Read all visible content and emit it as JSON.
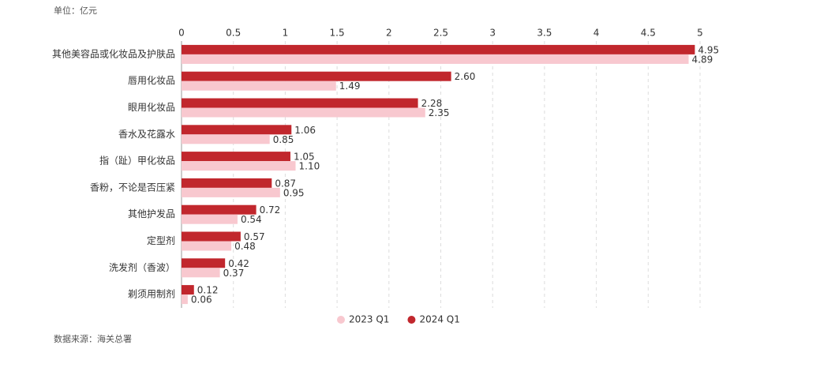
{
  "chart_data": {
    "type": "bar",
    "orientation": "horizontal",
    "unit_note": "单位：亿元",
    "source": "数据来源：海关总署",
    "categories": [
      "其他美容品或化妆品及护肤品",
      "唇用化妆品",
      "眼用化妆品",
      "香水及花露水",
      "指（趾）甲化妆品",
      "香粉，不论是否压紧",
      "其他护发品",
      "定型剂",
      "洗发剂（香波）",
      "剃须用制剂"
    ],
    "series": [
      {
        "name": "2023 Q1",
        "color": "#f8c8cf",
        "values": [
          4.89,
          1.49,
          2.35,
          0.85,
          1.1,
          0.95,
          0.54,
          0.48,
          0.37,
          0.06
        ],
        "value_labels": [
          "4.89",
          "1.49",
          "2.35",
          "0.85",
          "1.10",
          "0.95",
          "0.54",
          "0.48",
          "0.37",
          "0.06"
        ]
      },
      {
        "name": "2024 Q1",
        "color": "#c1272d",
        "values": [
          4.95,
          2.6,
          2.28,
          1.06,
          1.05,
          0.87,
          0.72,
          0.57,
          0.42,
          0.12
        ],
        "value_labels": [
          "4.95",
          "2.60",
          "2.28",
          "1.06",
          "1.05",
          "0.87",
          "0.72",
          "0.57",
          "0.42",
          "0.12"
        ]
      }
    ],
    "xlim": [
      0,
      5
    ],
    "xticks": [
      0,
      0.5,
      1,
      1.5,
      2,
      2.5,
      3,
      3.5,
      4,
      4.5,
      5
    ],
    "grid": true,
    "legend": "bottom"
  }
}
